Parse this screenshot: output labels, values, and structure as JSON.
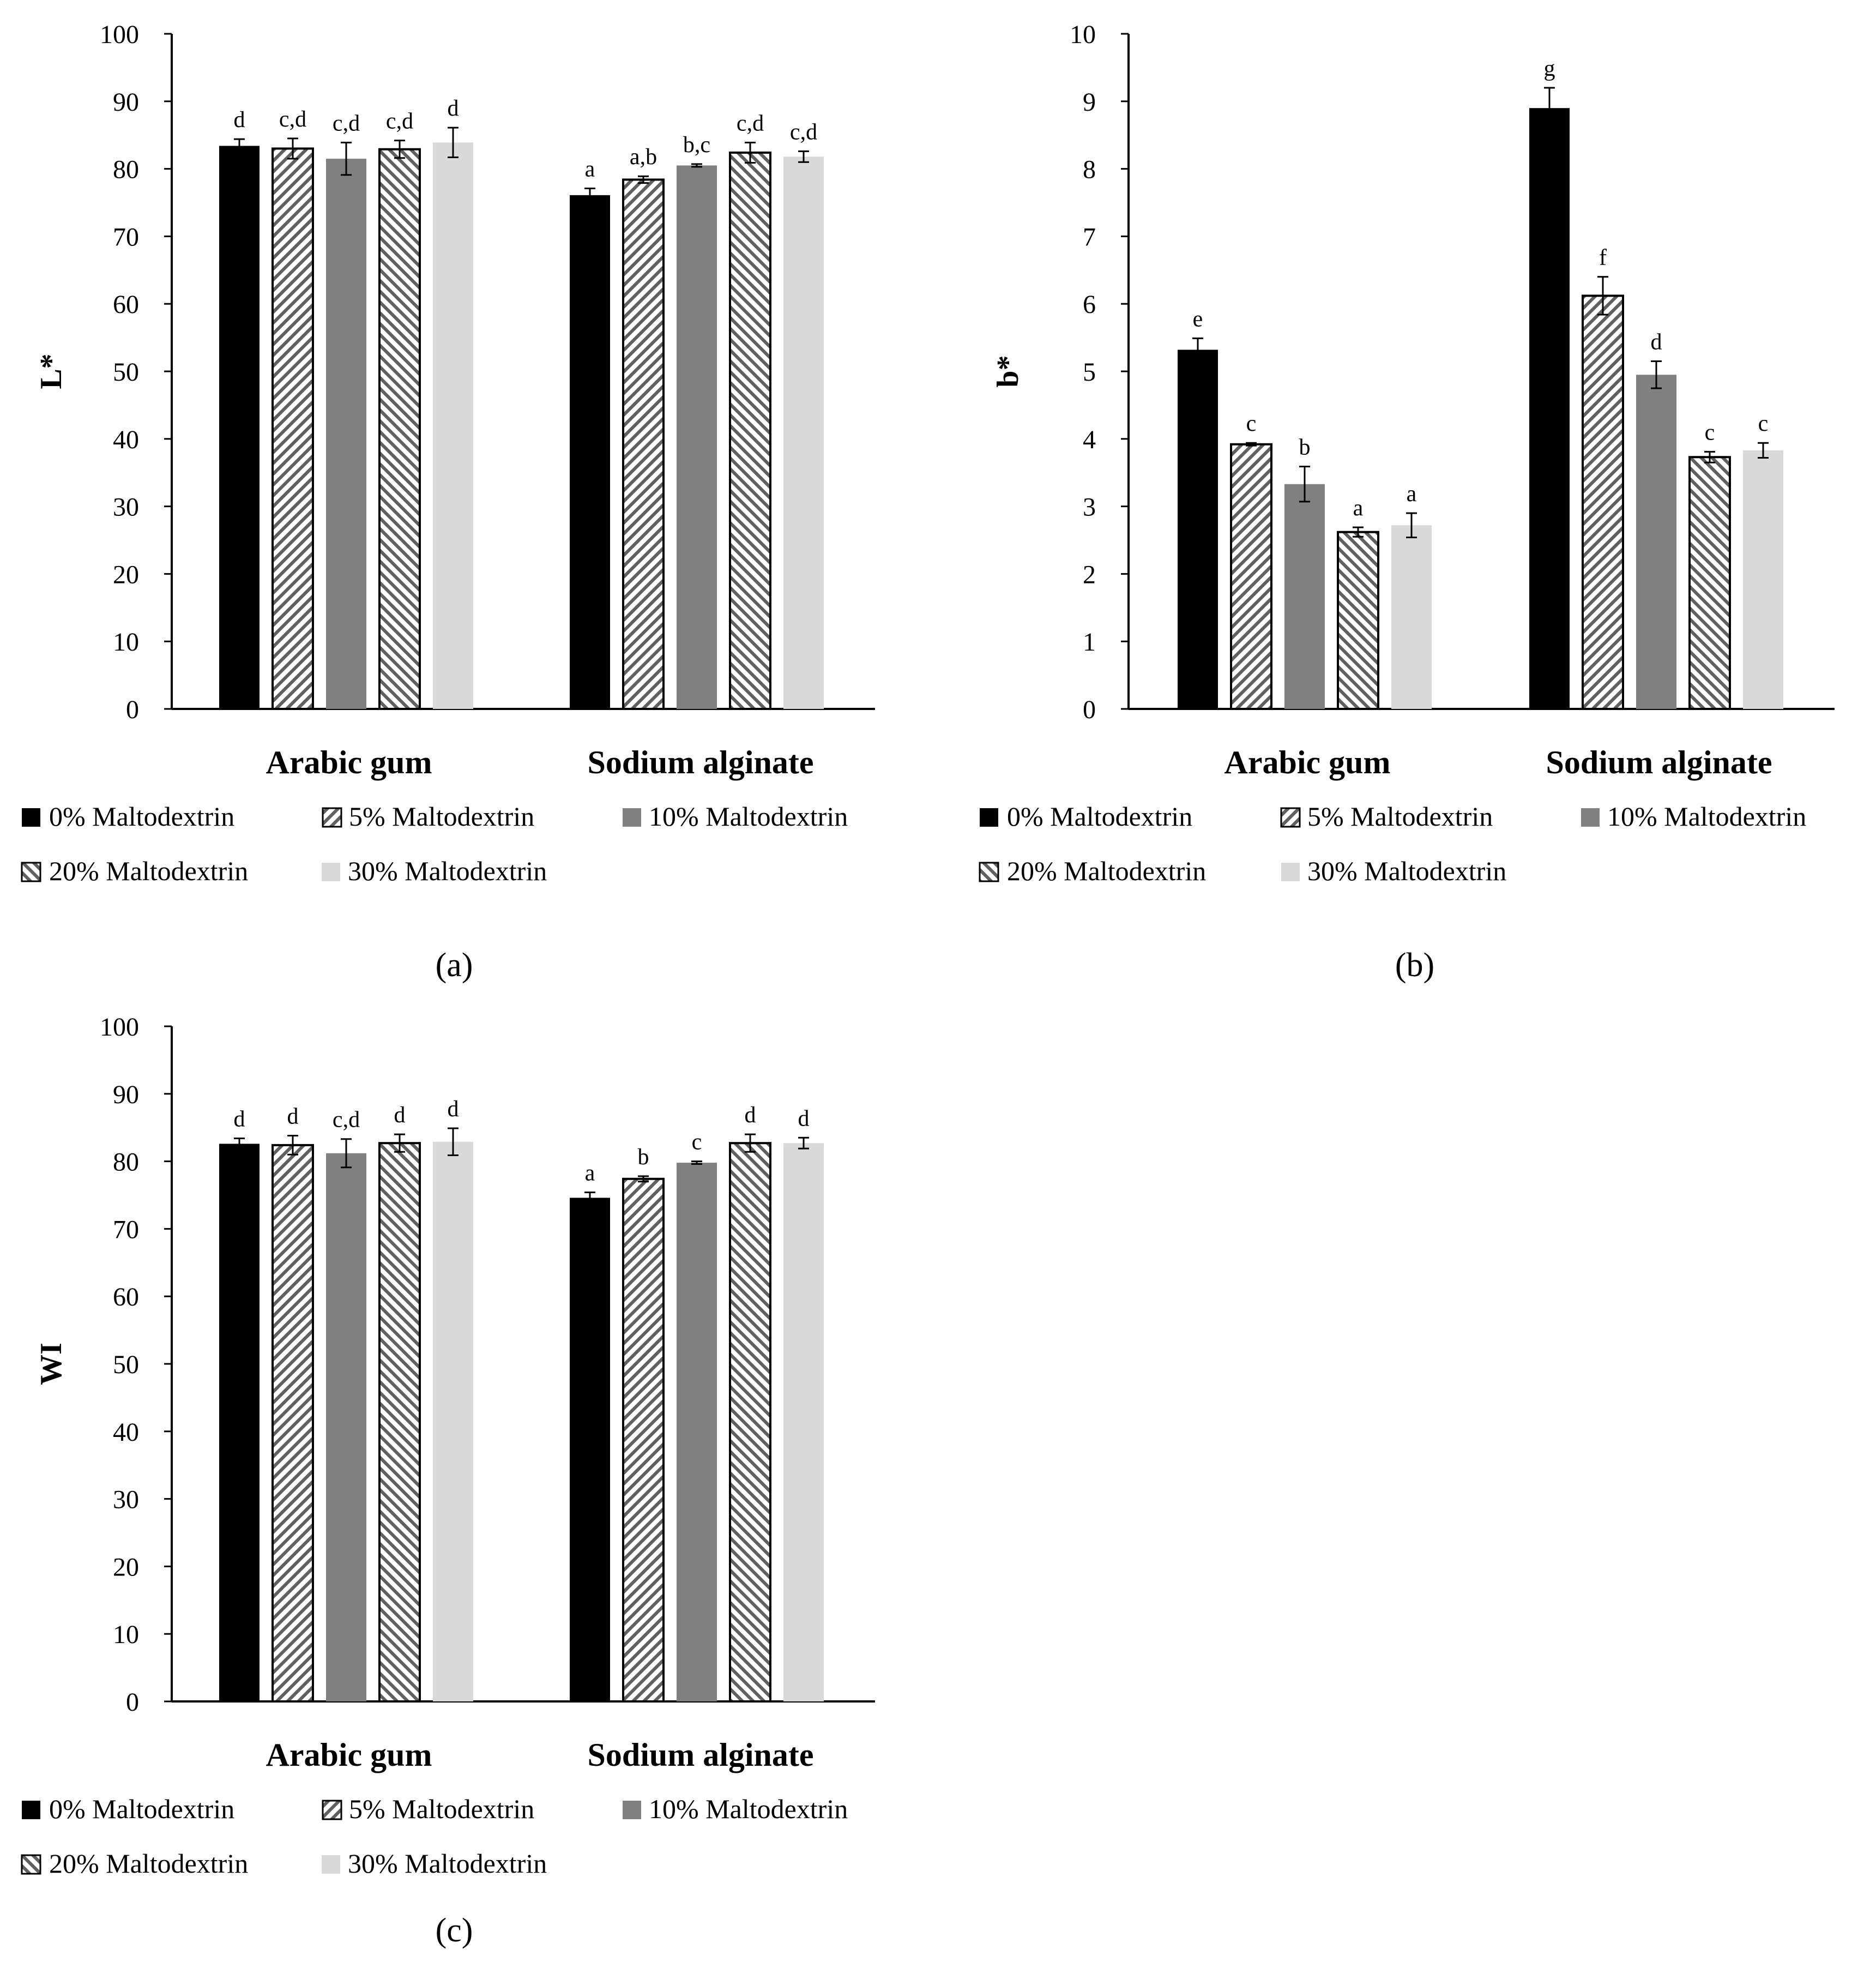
{
  "chart_data": [
    {
      "panel": "(a)",
      "type": "bar",
      "ylabel": "L*",
      "ylim": [
        0,
        100
      ],
      "yticks": [
        0,
        10,
        20,
        30,
        40,
        50,
        60,
        70,
        80,
        90,
        100
      ],
      "categories": [
        "Arabic gum",
        "Sodium alginate"
      ],
      "series": [
        {
          "name": "0% Maltodextrin",
          "values": [
            83.4,
            76.1
          ],
          "errors": [
            1.0,
            1.0
          ],
          "letters": [
            "d",
            "a"
          ]
        },
        {
          "name": "5% Maltodextrin",
          "values": [
            83.0,
            78.4
          ],
          "errors": [
            1.5,
            0.5
          ],
          "letters": [
            "c,d",
            "a,b"
          ]
        },
        {
          "name": "10% Maltodextrin",
          "values": [
            81.5,
            80.5
          ],
          "errors": [
            2.4,
            0.2
          ],
          "letters": [
            "c,d",
            "b,c"
          ]
        },
        {
          "name": "20% Maltodextrin",
          "values": [
            82.9,
            82.4
          ],
          "errors": [
            1.3,
            1.5
          ],
          "letters": [
            "c,d",
            "c,d"
          ]
        },
        {
          "name": "30% Maltodextrin",
          "values": [
            83.9,
            81.8
          ],
          "errors": [
            2.2,
            0.8
          ],
          "letters": [
            "d",
            "c,d"
          ]
        }
      ]
    },
    {
      "panel": "(b)",
      "type": "bar",
      "ylabel": "b*",
      "ylim": [
        0,
        10
      ],
      "yticks": [
        0,
        1,
        2,
        3,
        4,
        5,
        6,
        7,
        8,
        9,
        10
      ],
      "categories": [
        "Arabic gum",
        "Sodium alginate"
      ],
      "series": [
        {
          "name": "0% Maltodextrin",
          "values": [
            5.32,
            8.9
          ],
          "errors": [
            0.17,
            0.3
          ],
          "letters": [
            "e",
            "g"
          ]
        },
        {
          "name": "5% Maltodextrin",
          "values": [
            3.92,
            6.12
          ],
          "errors": [
            0.02,
            0.28
          ],
          "letters": [
            "c",
            "f"
          ]
        },
        {
          "name": "10% Maltodextrin",
          "values": [
            3.33,
            4.95
          ],
          "errors": [
            0.26,
            0.2
          ],
          "letters": [
            "b",
            "d"
          ]
        },
        {
          "name": "20% Maltodextrin",
          "values": [
            2.62,
            3.73
          ],
          "errors": [
            0.07,
            0.08
          ],
          "letters": [
            "a",
            "c"
          ]
        },
        {
          "name": "30% Maltodextrin",
          "values": [
            2.72,
            3.83
          ],
          "errors": [
            0.18,
            0.11
          ],
          "letters": [
            "a",
            "c"
          ]
        }
      ]
    },
    {
      "panel": "(c)",
      "type": "bar",
      "ylabel": "WI",
      "ylim": [
        0,
        100
      ],
      "yticks": [
        0,
        10,
        20,
        30,
        40,
        50,
        60,
        70,
        80,
        90,
        100
      ],
      "categories": [
        "Arabic gum",
        "Sodium alginate"
      ],
      "series": [
        {
          "name": "0% Maltodextrin",
          "values": [
            82.6,
            74.6
          ],
          "errors": [
            0.8,
            0.8
          ],
          "letters": [
            "d",
            "a"
          ]
        },
        {
          "name": "5% Maltodextrin",
          "values": [
            82.4,
            77.4
          ],
          "errors": [
            1.4,
            0.4
          ],
          "letters": [
            "d",
            "b"
          ]
        },
        {
          "name": "10% Maltodextrin",
          "values": [
            81.2,
            79.8
          ],
          "errors": [
            2.1,
            0.2
          ],
          "letters": [
            "c,d",
            "c"
          ]
        },
        {
          "name": "20% Maltodextrin",
          "values": [
            82.7,
            82.7
          ],
          "errors": [
            1.3,
            1.3
          ],
          "letters": [
            "d",
            "d"
          ]
        },
        {
          "name": "30% Maltodextrin",
          "values": [
            82.9,
            82.7
          ],
          "errors": [
            2.0,
            0.8
          ],
          "letters": [
            "d",
            "d"
          ]
        }
      ]
    }
  ],
  "legend_labels": [
    "0% Maltodextrin",
    "5% Maltodextrin",
    "10% Maltodextrin",
    "20% Maltodextrin",
    "30% Maltodextrin"
  ],
  "colors": {
    "series0": "#000000",
    "series2": "#808080",
    "series4": "#d9d9d9",
    "stroke": "#000000",
    "hatch_line": "#606060",
    "axis": "#000000"
  }
}
